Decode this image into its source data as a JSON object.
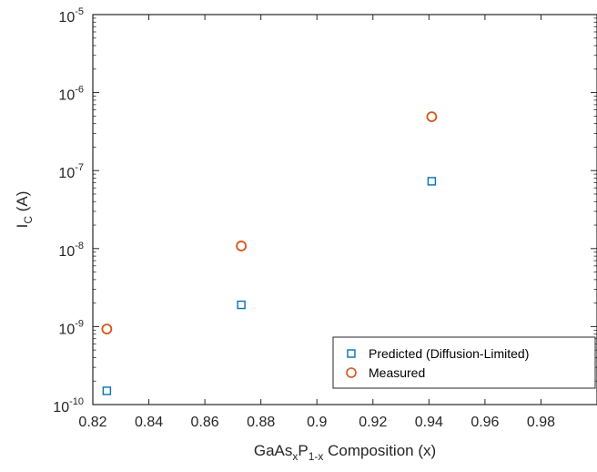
{
  "chart_data": {
    "type": "scatter",
    "xlabel": {
      "prefix": "GaAs",
      "sub1": "x",
      "mid": "P",
      "sub2": "1-x",
      "suffix": " Composition (x)"
    },
    "ylabel": {
      "main": "I",
      "sub": "C",
      "suffix": " (A)"
    },
    "x_scale": "linear",
    "y_scale": "log",
    "xlim": [
      0.82,
      1.0
    ],
    "ylim": [
      1e-10,
      1e-05
    ],
    "x_ticks": [
      0.82,
      0.84,
      0.86,
      0.88,
      0.9,
      0.92,
      0.94,
      0.96,
      0.98
    ],
    "x_tick_labels": [
      "0.82",
      "0.84",
      "0.86",
      "0.88",
      "0.9",
      "0.92",
      "0.94",
      "0.96",
      "0.98"
    ],
    "y_ticks": [
      {
        "value": 1e-10,
        "base": "10",
        "exp": "-10"
      },
      {
        "value": 1e-09,
        "base": "10",
        "exp": "-9"
      },
      {
        "value": 1e-08,
        "base": "10",
        "exp": "-8"
      },
      {
        "value": 1e-07,
        "base": "10",
        "exp": "-7"
      },
      {
        "value": 1e-06,
        "base": "10",
        "exp": "-6"
      },
      {
        "value": 1e-05,
        "base": "10",
        "exp": "-5"
      }
    ],
    "grid": false,
    "legend_position": "bottom-right",
    "series": [
      {
        "name": "Predicted (Diffusion-Limited)",
        "marker": "square",
        "color": "#0072BD",
        "points": [
          {
            "x": 0.825,
            "y": 1.5e-10
          },
          {
            "x": 0.873,
            "y": 1.9e-09
          },
          {
            "x": 0.941,
            "y": 7.3e-08
          }
        ]
      },
      {
        "name": "Measured",
        "marker": "circle",
        "color": "#D95319",
        "points": [
          {
            "x": 0.825,
            "y": 9.3e-10
          },
          {
            "x": 0.873,
            "y": 1.08e-08
          },
          {
            "x": 0.941,
            "y": 4.9e-07
          }
        ]
      }
    ]
  }
}
